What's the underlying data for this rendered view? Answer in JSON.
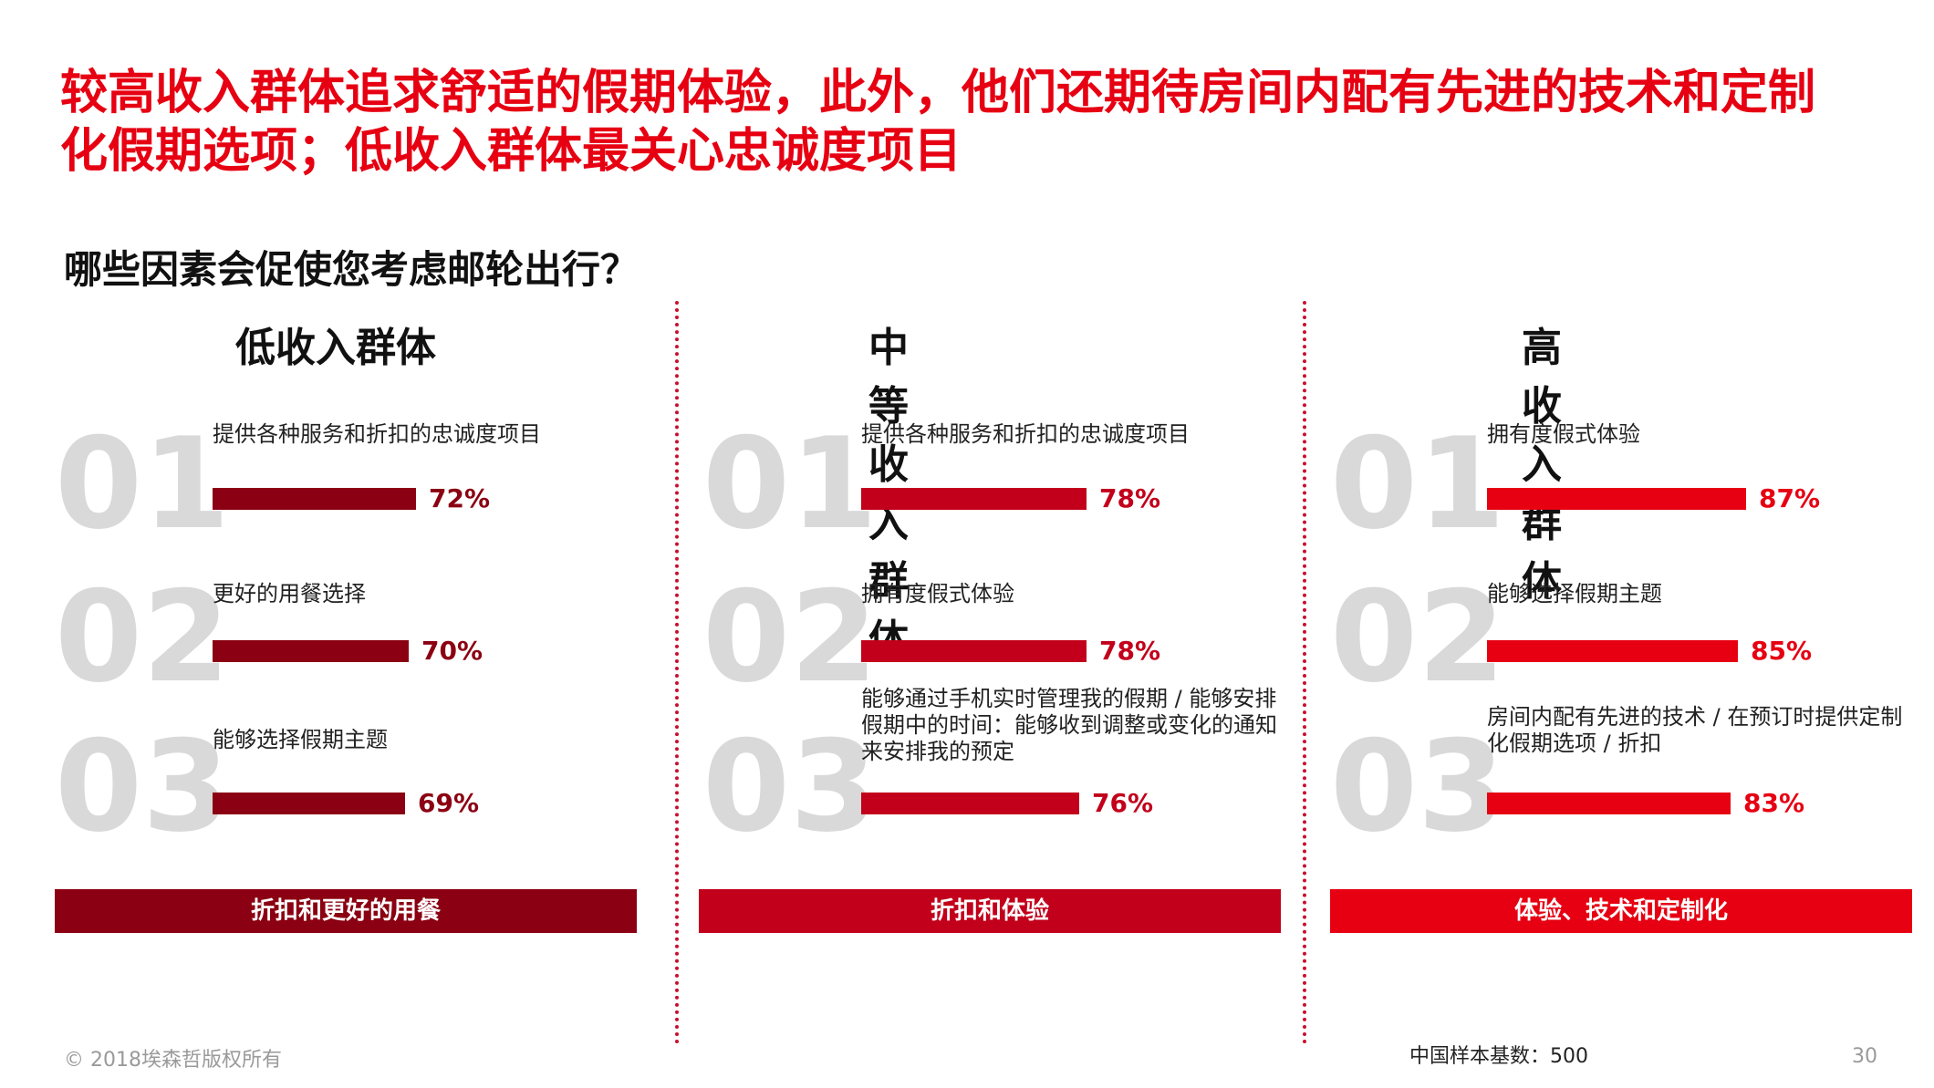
{
  "headline": {
    "line1": "较高收入群体追求舒适的假期体验，此外，他们还期待房间内配有先进的技术和定制",
    "line2": "化假期选项；低收入群体最关心忠诚度项目"
  },
  "question": "哪些因素会促使您考虑邮轮出行？",
  "colors": {
    "headline": "#e60012",
    "low": "#8b0012",
    "mid": "#c2001b",
    "high": "#e60012",
    "rank_number": "#d9d9d9",
    "divider": "#c8102e"
  },
  "chart_data": [
    {
      "type": "bar",
      "title": "低收入群体",
      "items": [
        {
          "rank": "01",
          "label": "提供各种服务和折扣的忠诚度项目",
          "value": 72,
          "display": "72%"
        },
        {
          "rank": "02",
          "label": "更好的用餐选择",
          "value": 70,
          "display": "70%"
        },
        {
          "rank": "03",
          "label": "能够选择假期主题",
          "value": 69,
          "display": "69%"
        }
      ],
      "summary": "折扣和更好的用餐"
    },
    {
      "type": "bar",
      "title": "中等收入群体",
      "items": [
        {
          "rank": "01",
          "label": "提供各种服务和折扣的忠诚度项目",
          "value": 78,
          "display": "78%"
        },
        {
          "rank": "02",
          "label": "拥有度假式体验",
          "value": 78,
          "display": "78%"
        },
        {
          "rank": "03",
          "label": "能够通过手机实时管理我的假期 / 能够安排假期中的时间：能够收到调整或变化的通知来安排我的预定",
          "value": 76,
          "display": "76%"
        }
      ],
      "summary": "折扣和体验"
    },
    {
      "type": "bar",
      "title": "高收入群体",
      "items": [
        {
          "rank": "01",
          "label": "拥有度假式体验",
          "value": 87,
          "display": "87%"
        },
        {
          "rank": "02",
          "label": "能够选择假期主题",
          "value": 85,
          "display": "85%"
        },
        {
          "rank": "03",
          "label": "房间内配有先进的技术 / 在预订时提供定制化假期选项 / 折扣",
          "value": 83,
          "display": "83%"
        }
      ],
      "summary": "体验、技术和定制化"
    }
  ],
  "footer": {
    "copyright": "© 2018埃森哲版权所有",
    "sample": "中国样本基数：500",
    "page": "30"
  }
}
